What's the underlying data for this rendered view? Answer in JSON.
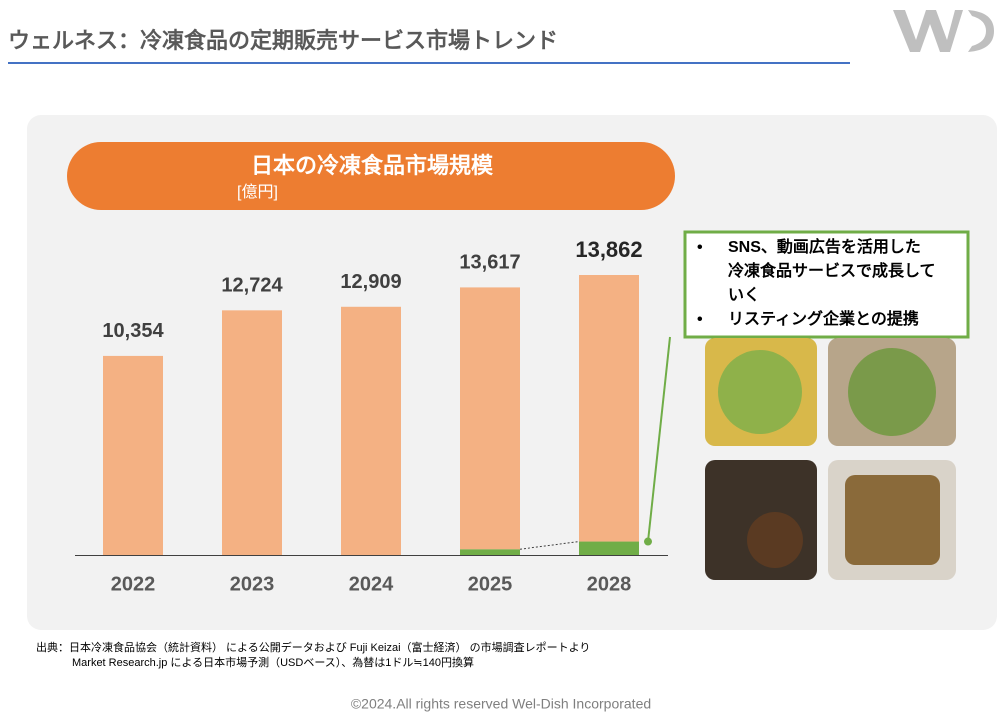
{
  "header": {
    "title": "ウェルネス：冷凍食品の定期販売サービス市場トレンド"
  },
  "chart_data": {
    "type": "bar",
    "title": "日本の冷凍食品市場規模",
    "subtitle": "[億円]",
    "categories": [
      "2022",
      "2023",
      "2024",
      "2025",
      "2028"
    ],
    "series": [
      {
        "color": "#70ad47",
        "values": [
          null,
          null,
          null,
          300,
          700
        ]
      },
      {
        "color": "#f4b183",
        "values": [
          10354,
          12724,
          12909,
          13617,
          13862
        ],
        "value_labels": [
          "10,354",
          "12,724",
          "12,909",
          "13,617",
          "13,862"
        ]
      }
    ]
  },
  "callout": [
    [
      "SNS、動画広告を活用した",
      "冷凍食品サービスで成長して",
      "いく"
    ],
    [
      "リスティング企業との提携"
    ]
  ],
  "source": [
    "出典：日本冷凍食品協会（統計資料） による公開データおよび Fuji Keizai（富士経済） の市場調査レポートより",
    "Market Research.jp による日本市場予測（USDベース）、為替は1ドル≒140円換算"
  ],
  "footer": "©2024.All rights reserved Wel-Dish Incorporated"
}
